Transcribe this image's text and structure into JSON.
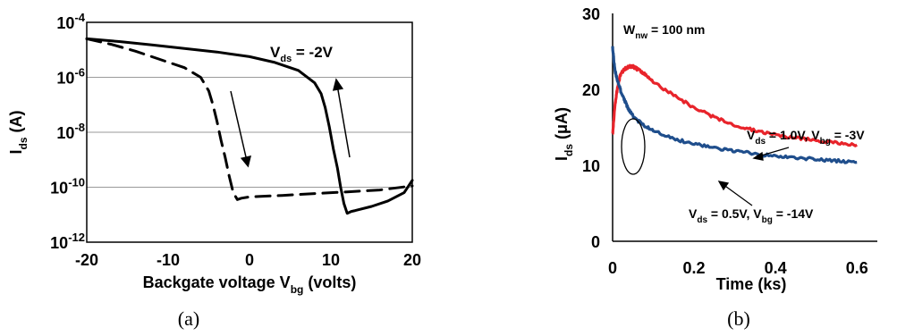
{
  "chart_data": [
    {
      "type": "line",
      "caption": "(a)",
      "xlabel": "Backgate voltage V",
      "xlabel_sub": "bg",
      "xlabel_suffix": " (volts)",
      "ylabel": "I",
      "ylabel_sub": "ds",
      "ylabel_suffix": " (A)",
      "xlim": [
        -20,
        20
      ],
      "ylim_exp": [
        -12,
        -4
      ],
      "y_scale": "log",
      "x_ticks": [
        "-20",
        "-10",
        "0",
        "10",
        "20"
      ],
      "x_tick_values": [
        -20,
        -10,
        0,
        10,
        20
      ],
      "y_tick_exponents": [
        "-4",
        "-6",
        "-8",
        "-10",
        "-12"
      ],
      "y_tick_values": [
        -4,
        -6,
        -8,
        -10,
        -12
      ],
      "y_tick_base": "10",
      "annotation": {
        "label": "V",
        "sub": "ds",
        "suffix": " = -2V"
      },
      "series": [
        {
          "style": "solid",
          "direction": "up",
          "x": [
            -20,
            -16,
            -12,
            -8,
            -4,
            0,
            3,
            6,
            8,
            8.8,
            9.3,
            9.8,
            10.3,
            10.8,
            11.2,
            11.6,
            12.0,
            12.5,
            13,
            15,
            17,
            19,
            20
          ],
          "log10_y": [
            -4.6,
            -4.7,
            -4.82,
            -4.95,
            -5.08,
            -5.25,
            -5.45,
            -5.75,
            -6.2,
            -6.6,
            -7.1,
            -7.8,
            -8.6,
            -9.3,
            -10.0,
            -10.6,
            -10.95,
            -10.88,
            -10.85,
            -10.7,
            -10.5,
            -10.2,
            -9.75
          ]
        },
        {
          "style": "dashed",
          "direction": "down",
          "x": [
            -20,
            -17,
            -14,
            -11,
            -8,
            -6,
            -5,
            -4.5,
            -4,
            -3.5,
            -3,
            -2.5,
            -2,
            -1.5,
            -1,
            0,
            4,
            8,
            12,
            16,
            20
          ],
          "log10_y": [
            -4.6,
            -4.8,
            -5.05,
            -5.35,
            -5.65,
            -6.0,
            -6.5,
            -7.0,
            -7.6,
            -8.3,
            -8.9,
            -9.6,
            -10.2,
            -10.45,
            -10.4,
            -10.35,
            -10.3,
            -10.23,
            -10.17,
            -10.1,
            -9.95
          ]
        }
      ]
    },
    {
      "type": "line",
      "caption": "(b)",
      "xlabel": "Time (ks)",
      "ylabel": "I",
      "ylabel_sub": "ds",
      "ylabel_suffix": " (μA)",
      "xlim": [
        0,
        0.65
      ],
      "ylim": [
        0,
        30
      ],
      "x_ticks": [
        "0",
        "0.2",
        "0.4",
        "0.6"
      ],
      "x_tick_values": [
        0,
        0.2,
        0.4,
        0.6
      ],
      "y_ticks": [
        "0",
        "10",
        "20",
        "30"
      ],
      "y_tick_values": [
        0,
        10,
        20,
        30
      ],
      "annotation": {
        "label": "W",
        "sub": "nw",
        "suffix": " = 100 nm"
      },
      "series": [
        {
          "color": "#e8242b",
          "label_parts": [
            "V",
            "ds",
            " = 1.0V, V",
            "bg",
            " = -3V"
          ],
          "x": [
            0,
            0.005,
            0.01,
            0.015,
            0.02,
            0.03,
            0.04,
            0.05,
            0.06,
            0.08,
            0.1,
            0.15,
            0.2,
            0.25,
            0.3,
            0.35,
            0.4,
            0.45,
            0.5,
            0.55,
            0.6
          ],
          "y": [
            14,
            17.5,
            19.5,
            21,
            22,
            22.7,
            23,
            23,
            22.7,
            22,
            21,
            19.2,
            17.6,
            16.3,
            15.3,
            14.6,
            14,
            13.6,
            13.3,
            13,
            12.7
          ]
        },
        {
          "color": "#1f4e8c",
          "label_parts": [
            "V",
            "ds",
            " = 0.5V, V",
            "bg",
            " = -14V"
          ],
          "x": [
            0,
            0.005,
            0.01,
            0.02,
            0.03,
            0.04,
            0.05,
            0.07,
            0.1,
            0.15,
            0.2,
            0.25,
            0.3,
            0.35,
            0.4,
            0.45,
            0.5,
            0.55,
            0.6
          ],
          "y": [
            25.5,
            22.8,
            21.5,
            19.8,
            18.5,
            17.3,
            16.5,
            15.5,
            14.6,
            13.5,
            12.8,
            12.3,
            11.9,
            11.5,
            11.2,
            11,
            10.8,
            10.6,
            10.4
          ]
        }
      ]
    }
  ]
}
